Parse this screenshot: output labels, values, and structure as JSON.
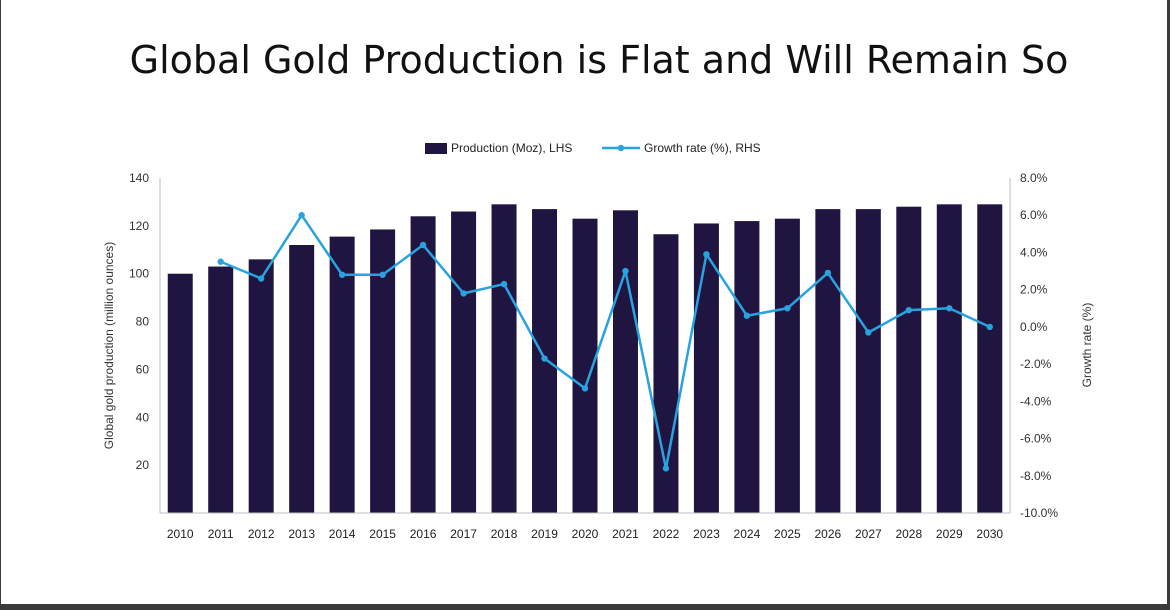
{
  "slide": {
    "title": "Global Gold Production is Flat and Will Remain So"
  },
  "chart_data": {
    "type": "bar",
    "categories": [
      "2010",
      "2011",
      "2012",
      "2013",
      "2014",
      "2015",
      "2016",
      "2017",
      "2018",
      "2019",
      "2020",
      "2021",
      "2022",
      "2023",
      "2024",
      "2025",
      "2026",
      "2027",
      "2028",
      "2029",
      "2030"
    ],
    "series": [
      {
        "name": "Production (Moz), LHS",
        "type": "bar",
        "axis": "left",
        "color": "#201540",
        "values": [
          100,
          103,
          106,
          112,
          115.5,
          118.5,
          124,
          126,
          129,
          127,
          123,
          126.5,
          116.5,
          121,
          122,
          123,
          127,
          127,
          128,
          129,
          129
        ]
      },
      {
        "name": "Growth rate (%), RHS",
        "type": "line",
        "axis": "right",
        "color": "#29a3e0",
        "values": [
          null,
          3.5,
          2.6,
          6.0,
          2.8,
          2.8,
          4.4,
          1.8,
          2.3,
          -1.7,
          -3.3,
          3.0,
          -7.6,
          3.9,
          0.6,
          1.0,
          2.9,
          -0.3,
          0.9,
          1.0,
          0.0
        ]
      }
    ],
    "y_left": {
      "label": "Global gold production (million ounces)",
      "range": [
        0,
        140
      ],
      "ticks": [
        "20",
        "40",
        "60",
        "80",
        "100",
        "120",
        "140"
      ],
      "tick_values": [
        20,
        40,
        60,
        80,
        100,
        120,
        140
      ]
    },
    "y_right": {
      "label": "Growth rate (%)",
      "range": [
        -10,
        8
      ],
      "ticks": [
        "8.0%",
        "6.0%",
        "4.0%",
        "2.0%",
        "0.0%",
        "-2.0%",
        "-4.0%",
        "-6.0%",
        "-8.0%",
        "-10.0%"
      ],
      "tick_values": [
        8,
        6,
        4,
        2,
        0,
        -2,
        -4,
        -6,
        -8,
        -10
      ]
    },
    "grid": false,
    "legend_position": "top-center"
  }
}
